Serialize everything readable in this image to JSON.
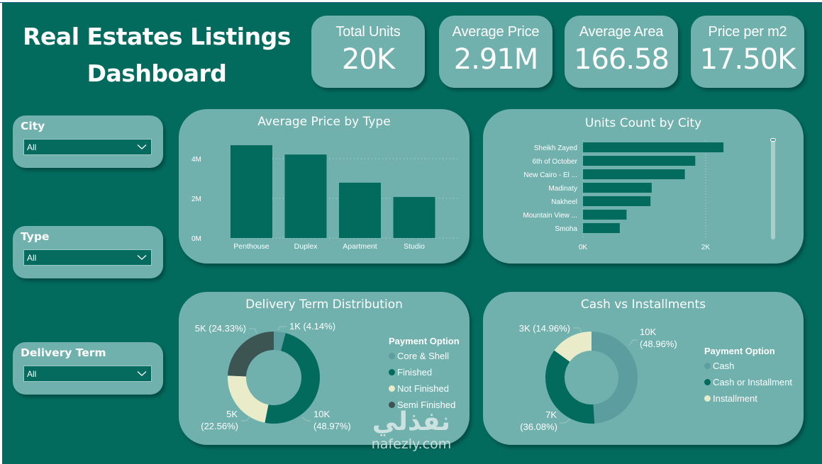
{
  "header": {
    "title": "Real Estates Listings Dashboard"
  },
  "kpis": [
    {
      "label": "Total Units",
      "value": "20K"
    },
    {
      "label": "Average Price",
      "value": "2.91M"
    },
    {
      "label": "Average Area",
      "value": "166.58"
    },
    {
      "label": "Price per m2",
      "value": "17.50K"
    }
  ],
  "slicers": [
    {
      "label": "City",
      "selected": "All",
      "icon": "chevron-down-icon"
    },
    {
      "label": "Type",
      "selected": "All",
      "icon": "chevron-down-icon"
    },
    {
      "label": "Delivery Term",
      "selected": "All",
      "icon": "chevron-down-icon"
    }
  ],
  "colors": {
    "background": "#036b5e",
    "card": "#70b1ae",
    "bar": "#036b5e",
    "core_shell": "#5c9ea0",
    "finished": "#036b5e",
    "not_finished": "#e9ebc9",
    "semi_finished": "#3c5452",
    "cash": "#5c9ea0",
    "cash_or_installment": "#036b5e",
    "installment": "#e9ebc9"
  },
  "chart_data": [
    {
      "type": "bar",
      "title": "Average Price by Type",
      "categories": [
        "Penthouse",
        "Duplex",
        "Apartment",
        "Studio"
      ],
      "values": [
        4.68,
        4.21,
        2.79,
        2.07
      ],
      "unit": "M",
      "yticks": [
        "0M",
        "2M",
        "4M"
      ],
      "ylim": [
        0,
        4.9
      ],
      "grid": true
    },
    {
      "type": "bar",
      "orientation": "horizontal",
      "title": "Units Count by City",
      "categories": [
        "Sheikh Zayed",
        "6th of October",
        "New Cairo - El ...",
        "Madinaty",
        "Nakheel",
        "Mountain View ...",
        "Smoha"
      ],
      "values": [
        2290,
        1830,
        1660,
        1120,
        1100,
        710,
        600
      ],
      "xticks": [
        "0K",
        "2K"
      ],
      "xlim": [
        0,
        2800
      ],
      "grid": true,
      "scrollbar": true
    },
    {
      "type": "pie",
      "donut": true,
      "title": "Delivery Term Distribution",
      "legend_title": "Payment Option",
      "legend_position": "right",
      "slices": [
        {
          "name": "Core & Shell",
          "percent": 4.14,
          "label": "1K (4.14%)",
          "color_key": "core_shell"
        },
        {
          "name": "Finished",
          "percent": 48.97,
          "label": "10K (48.97%)",
          "color_key": "finished"
        },
        {
          "name": "Not Finished",
          "percent": 22.56,
          "label": "5K (22.56%)",
          "color_key": "not_finished"
        },
        {
          "name": "Semi Finished",
          "percent": 24.33,
          "label": "5K (24.33%)",
          "color_key": "semi_finished"
        }
      ]
    },
    {
      "type": "pie",
      "donut": true,
      "title": "Cash vs Installments",
      "legend_title": "Payment Option",
      "legend_position": "right",
      "slices": [
        {
          "name": "Cash",
          "percent": 48.96,
          "label": "10K (48.96%)",
          "color_key": "cash"
        },
        {
          "name": "Cash or Installment",
          "percent": 36.08,
          "label": "7K (36.08%)",
          "color_key": "cash_or_installment"
        },
        {
          "name": "Installment",
          "percent": 14.96,
          "label": "3K (14.96%)",
          "color_key": "installment"
        }
      ]
    }
  ],
  "watermark": {
    "arabic": "نفذلي",
    "latin": "nafezly.com"
  }
}
